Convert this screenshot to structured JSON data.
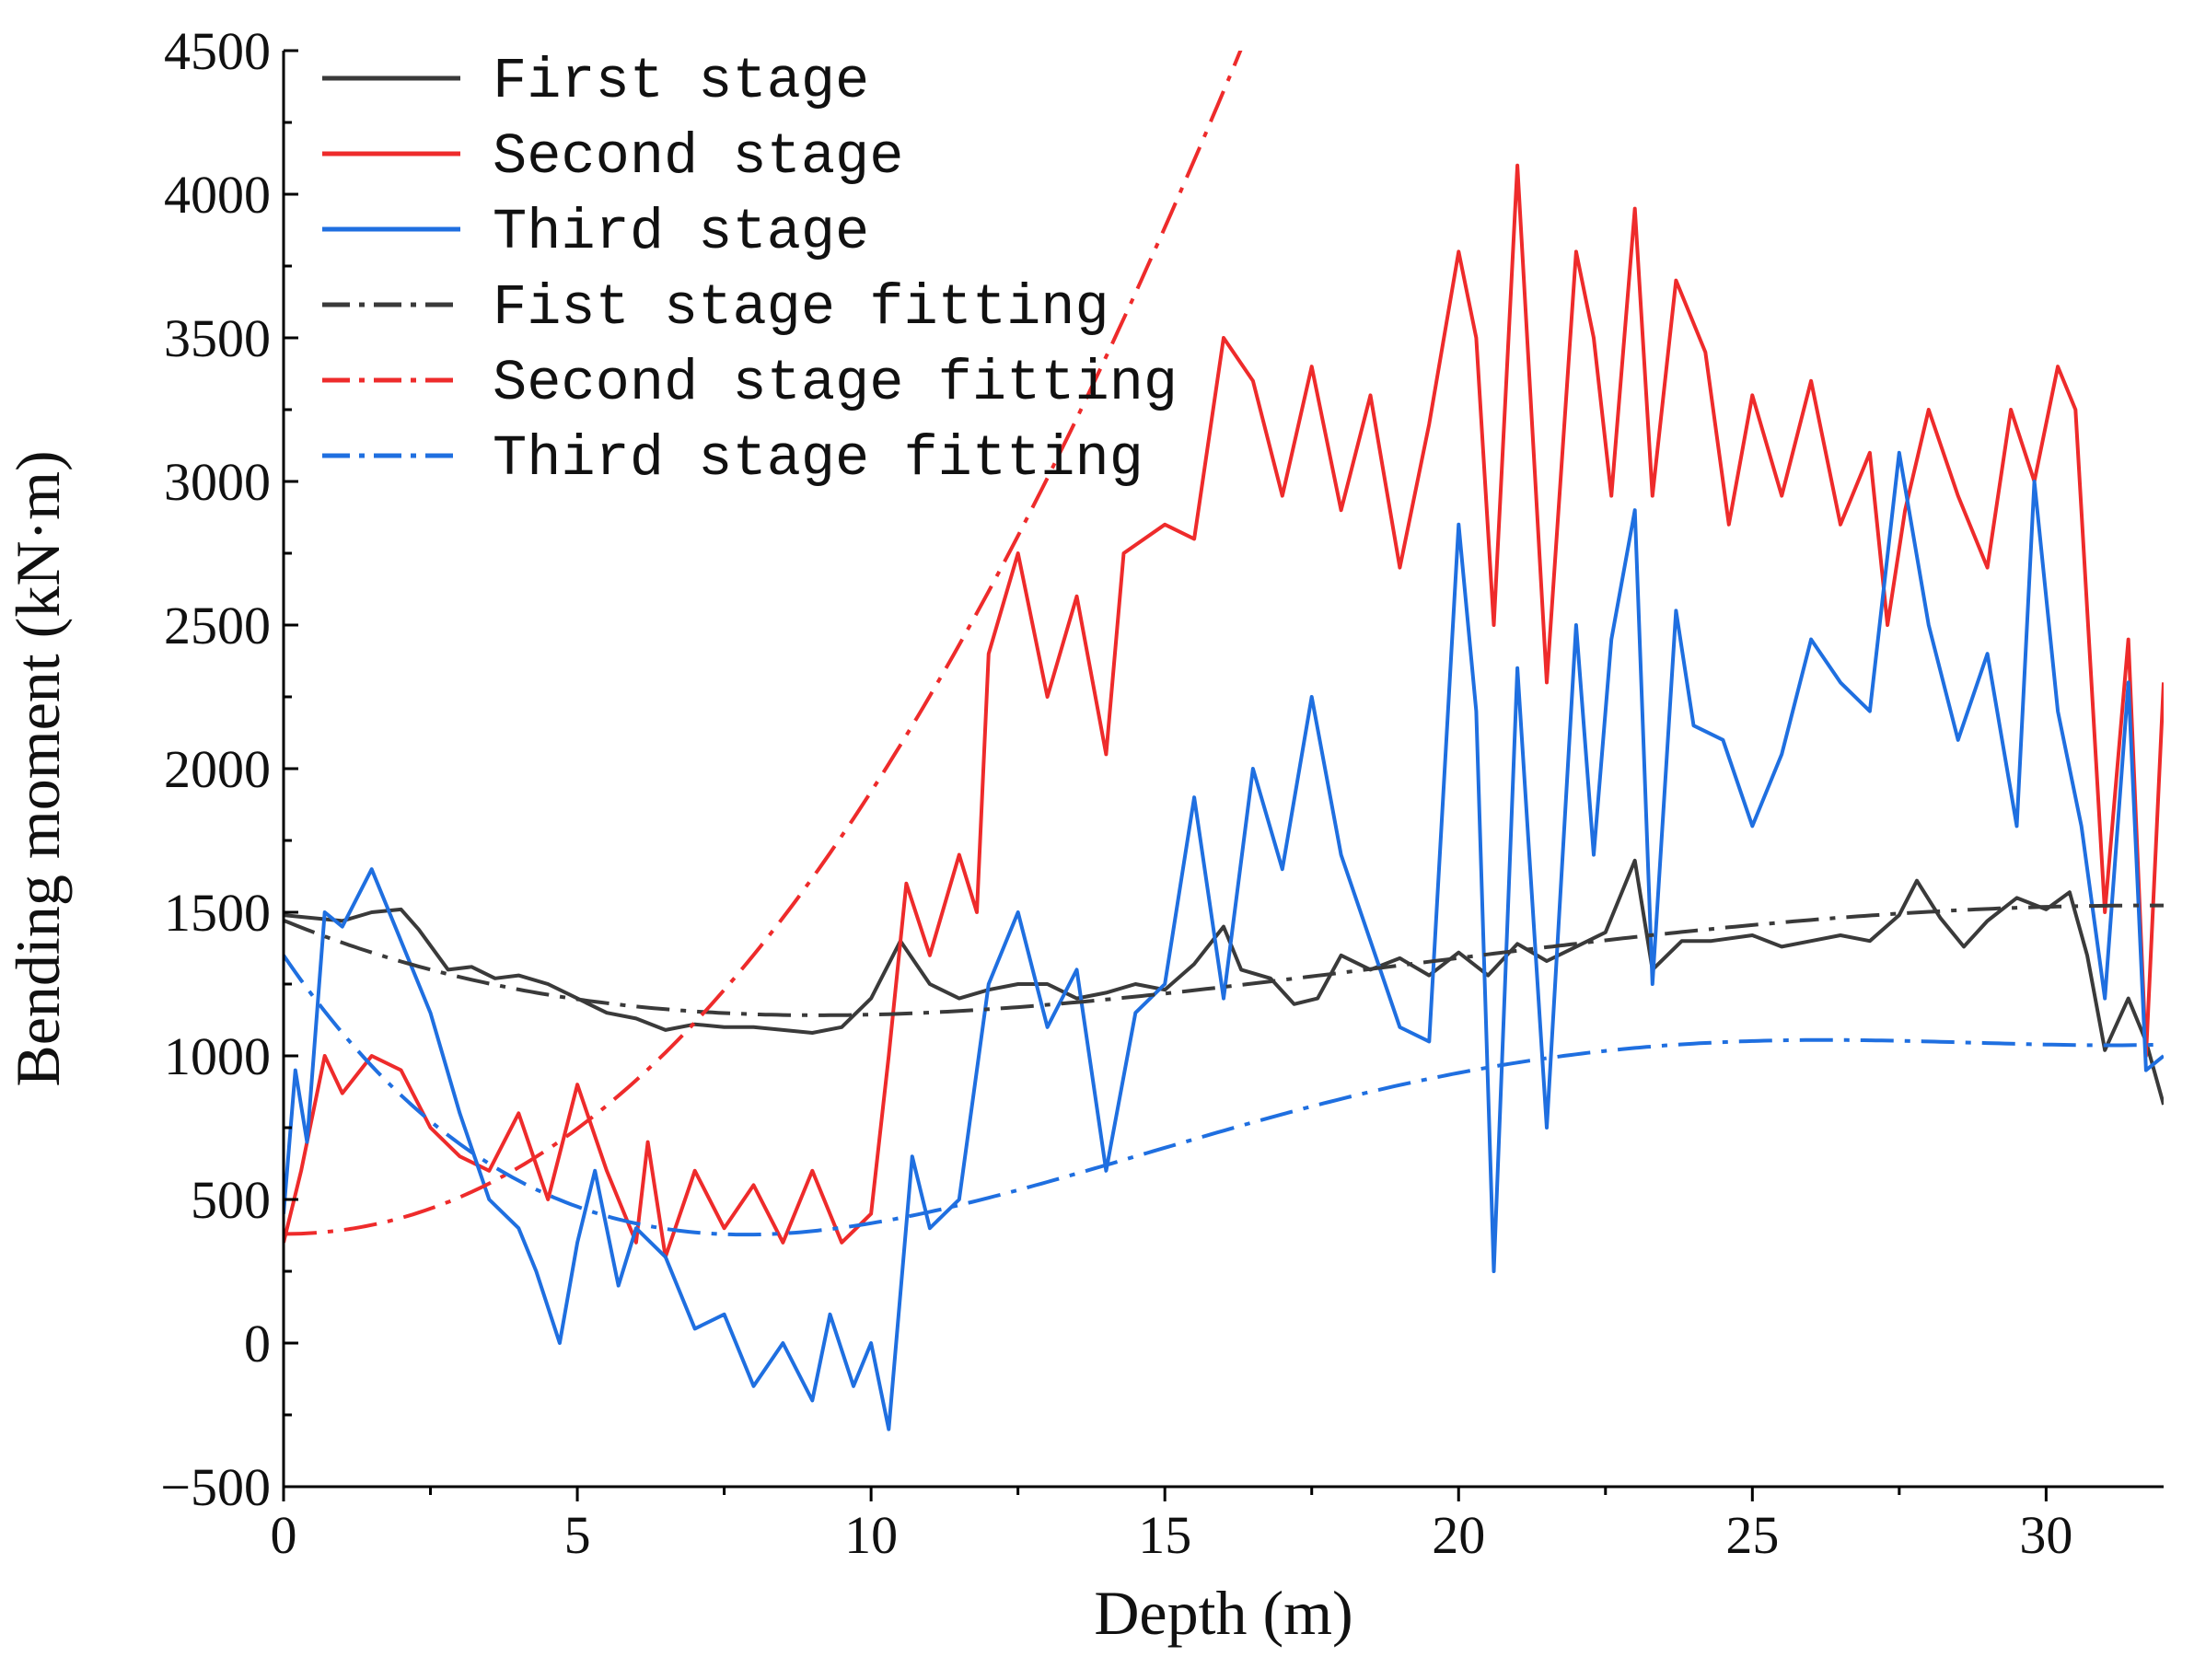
{
  "chart_data": {
    "type": "line",
    "title": "",
    "xlabel": "Depth (m)",
    "ylabel": "Bending moment (kN·m)",
    "xlim": [
      0,
      32
    ],
    "ylim": [
      -500,
      4500
    ],
    "grid": false,
    "legend_position": "top-left",
    "x_ticks": [
      0,
      5,
      10,
      15,
      20,
      25,
      30
    ],
    "x_tick_labels": [
      "0",
      "5",
      "10",
      "15",
      "20",
      "25",
      "30"
    ],
    "y_ticks": [
      -500,
      0,
      500,
      1000,
      1500,
      2000,
      2500,
      3000,
      3500,
      4000,
      4500
    ],
    "y_tick_labels": [
      "−500",
      "0",
      "500",
      "1000",
      "1500",
      "2000",
      "2500",
      "3000",
      "3500",
      "4000",
      "4500"
    ],
    "series": [
      {
        "name": "First stage",
        "style": "solid",
        "color": "#3a3a3a",
        "points": [
          [
            0,
            1490
          ],
          [
            0.5,
            1480
          ],
          [
            1,
            1470
          ],
          [
            1.5,
            1500
          ],
          [
            2,
            1510
          ],
          [
            2.3,
            1440
          ],
          [
            2.8,
            1300
          ],
          [
            3.2,
            1310
          ],
          [
            3.6,
            1270
          ],
          [
            4,
            1280
          ],
          [
            4.5,
            1250
          ],
          [
            5,
            1200
          ],
          [
            5.5,
            1150
          ],
          [
            6,
            1130
          ],
          [
            6.5,
            1090
          ],
          [
            7,
            1110
          ],
          [
            7.5,
            1100
          ],
          [
            8,
            1100
          ],
          [
            8.5,
            1090
          ],
          [
            9,
            1080
          ],
          [
            9.5,
            1100
          ],
          [
            10,
            1200
          ],
          [
            10.5,
            1400
          ],
          [
            11,
            1250
          ],
          [
            11.5,
            1200
          ],
          [
            12,
            1230
          ],
          [
            12.5,
            1250
          ],
          [
            13,
            1250
          ],
          [
            13.5,
            1200
          ],
          [
            14,
            1220
          ],
          [
            14.5,
            1250
          ],
          [
            15,
            1230
          ],
          [
            15.5,
            1320
          ],
          [
            16,
            1450
          ],
          [
            16.3,
            1300
          ],
          [
            16.8,
            1270
          ],
          [
            17.2,
            1180
          ],
          [
            17.6,
            1200
          ],
          [
            18,
            1350
          ],
          [
            18.5,
            1300
          ],
          [
            19,
            1340
          ],
          [
            19.5,
            1280
          ],
          [
            20,
            1360
          ],
          [
            20.5,
            1280
          ],
          [
            21,
            1390
          ],
          [
            21.5,
            1330
          ],
          [
            22,
            1380
          ],
          [
            22.5,
            1430
          ],
          [
            23,
            1680
          ],
          [
            23.3,
            1300
          ],
          [
            23.8,
            1400
          ],
          [
            24.3,
            1400
          ],
          [
            25,
            1420
          ],
          [
            25.5,
            1380
          ],
          [
            26,
            1400
          ],
          [
            26.5,
            1420
          ],
          [
            27,
            1400
          ],
          [
            27.5,
            1490
          ],
          [
            27.8,
            1610
          ],
          [
            28.2,
            1480
          ],
          [
            28.6,
            1380
          ],
          [
            29,
            1470
          ],
          [
            29.5,
            1550
          ],
          [
            30,
            1510
          ],
          [
            30.4,
            1570
          ],
          [
            30.7,
            1350
          ],
          [
            31,
            1020
          ],
          [
            31.4,
            1200
          ],
          [
            31.7,
            1050
          ],
          [
            32,
            830
          ]
        ]
      },
      {
        "name": "Second stage",
        "style": "solid",
        "color": "#ee2b2b",
        "points": [
          [
            0,
            350
          ],
          [
            0.3,
            600
          ],
          [
            0.7,
            1000
          ],
          [
            1,
            870
          ],
          [
            1.5,
            1000
          ],
          [
            2,
            950
          ],
          [
            2.5,
            750
          ],
          [
            3,
            650
          ],
          [
            3.5,
            600
          ],
          [
            4,
            800
          ],
          [
            4.5,
            500
          ],
          [
            5,
            900
          ],
          [
            5.5,
            600
          ],
          [
            6,
            350
          ],
          [
            6.2,
            700
          ],
          [
            6.5,
            300
          ],
          [
            7,
            600
          ],
          [
            7.5,
            400
          ],
          [
            8,
            550
          ],
          [
            8.5,
            350
          ],
          [
            9,
            600
          ],
          [
            9.5,
            350
          ],
          [
            10,
            450
          ],
          [
            10.3,
            1000
          ],
          [
            10.6,
            1600
          ],
          [
            11,
            1350
          ],
          [
            11.5,
            1700
          ],
          [
            11.8,
            1500
          ],
          [
            12,
            2400
          ],
          [
            12.5,
            2750
          ],
          [
            13,
            2250
          ],
          [
            13.5,
            2600
          ],
          [
            14,
            2050
          ],
          [
            14.3,
            2750
          ],
          [
            15,
            2850
          ],
          [
            15.5,
            2800
          ],
          [
            16,
            3500
          ],
          [
            16.5,
            3350
          ],
          [
            17,
            2950
          ],
          [
            17.5,
            3400
          ],
          [
            18,
            2900
          ],
          [
            18.5,
            3300
          ],
          [
            19,
            2700
          ],
          [
            19.5,
            3200
          ],
          [
            20,
            3800
          ],
          [
            20.3,
            3500
          ],
          [
            20.6,
            2500
          ],
          [
            21,
            4100
          ],
          [
            21.5,
            2300
          ],
          [
            22,
            3800
          ],
          [
            22.3,
            3500
          ],
          [
            22.6,
            2950
          ],
          [
            23,
            3950
          ],
          [
            23.3,
            2950
          ],
          [
            23.7,
            3700
          ],
          [
            24.2,
            3450
          ],
          [
            24.6,
            2850
          ],
          [
            25,
            3300
          ],
          [
            25.5,
            2950
          ],
          [
            26,
            3350
          ],
          [
            26.5,
            2850
          ],
          [
            27,
            3100
          ],
          [
            27.3,
            2500
          ],
          [
            27.6,
            2900
          ],
          [
            28,
            3250
          ],
          [
            28.5,
            2950
          ],
          [
            29,
            2700
          ],
          [
            29.4,
            3250
          ],
          [
            29.8,
            3000
          ],
          [
            30.2,
            3400
          ],
          [
            30.5,
            3250
          ],
          [
            31,
            1500
          ],
          [
            31.4,
            2450
          ],
          [
            31.7,
            1000
          ],
          [
            32,
            2300
          ]
        ]
      },
      {
        "name": "Third stage",
        "style": "solid",
        "color": "#1f6fe0",
        "points": [
          [
            0,
            450
          ],
          [
            0.2,
            950
          ],
          [
            0.4,
            700
          ],
          [
            0.7,
            1500
          ],
          [
            1,
            1450
          ],
          [
            1.5,
            1650
          ],
          [
            2,
            1400
          ],
          [
            2.5,
            1150
          ],
          [
            3,
            800
          ],
          [
            3.5,
            500
          ],
          [
            4,
            400
          ],
          [
            4.3,
            250
          ],
          [
            4.7,
            0
          ],
          [
            5,
            350
          ],
          [
            5.3,
            600
          ],
          [
            5.7,
            200
          ],
          [
            6,
            400
          ],
          [
            6.5,
            300
          ],
          [
            7,
            50
          ],
          [
            7.5,
            100
          ],
          [
            8,
            -150
          ],
          [
            8.5,
            0
          ],
          [
            9,
            -200
          ],
          [
            9.3,
            100
          ],
          [
            9.7,
            -150
          ],
          [
            10,
            0
          ],
          [
            10.3,
            -300
          ],
          [
            10.7,
            650
          ],
          [
            11,
            400
          ],
          [
            11.5,
            500
          ],
          [
            12,
            1250
          ],
          [
            12.5,
            1500
          ],
          [
            13,
            1100
          ],
          [
            13.5,
            1300
          ],
          [
            14,
            600
          ],
          [
            14.5,
            1150
          ],
          [
            15,
            1250
          ],
          [
            15.5,
            1900
          ],
          [
            16,
            1200
          ],
          [
            16.5,
            2000
          ],
          [
            17,
            1650
          ],
          [
            17.5,
            2250
          ],
          [
            18,
            1700
          ],
          [
            18.5,
            1400
          ],
          [
            19,
            1100
          ],
          [
            19.5,
            1050
          ],
          [
            20,
            2850
          ],
          [
            20.3,
            2200
          ],
          [
            20.6,
            250
          ],
          [
            21,
            2350
          ],
          [
            21.5,
            750
          ],
          [
            22,
            2500
          ],
          [
            22.3,
            1700
          ],
          [
            22.6,
            2450
          ],
          [
            23,
            2900
          ],
          [
            23.3,
            1250
          ],
          [
            23.7,
            2550
          ],
          [
            24,
            2150
          ],
          [
            24.5,
            2100
          ],
          [
            25,
            1800
          ],
          [
            25.5,
            2050
          ],
          [
            26,
            2450
          ],
          [
            26.5,
            2300
          ],
          [
            27,
            2200
          ],
          [
            27.5,
            3100
          ],
          [
            28,
            2500
          ],
          [
            28.5,
            2100
          ],
          [
            29,
            2400
          ],
          [
            29.5,
            1800
          ],
          [
            29.8,
            3000
          ],
          [
            30.2,
            2200
          ],
          [
            30.6,
            1800
          ],
          [
            31,
            1200
          ],
          [
            31.4,
            2300
          ],
          [
            31.7,
            950
          ],
          [
            32,
            1000
          ]
        ]
      },
      {
        "name": "Fist stage fitting",
        "style": "dash-dot",
        "color": "#3a3a3a",
        "coefficients": [
          1471.8,
          -84.167,
          6.6204,
          -0.16008,
          0.0011553
        ]
      },
      {
        "name": "Second stage fitting",
        "style": "dash-dot",
        "color": "#ee2b2b",
        "coefficients": [
          380,
          0,
          13.4,
          0.31,
          -0.011
        ]
      },
      {
        "name": "Third stage fitting",
        "style": "dash-dot",
        "color": "#1f6fe0",
        "coefficients": [
          1350,
          -298.6,
          29.486,
          -1.0117,
          0.011637
        ]
      }
    ]
  }
}
